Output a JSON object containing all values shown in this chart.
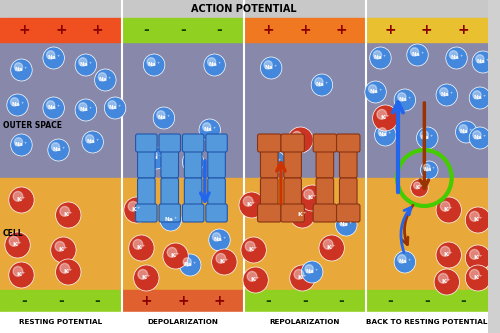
{
  "title": "ACTION POTENTIAL",
  "sections": [
    "RESTING POTENTIAL",
    "DEPOLARIZATION",
    "REPOLARIZATION",
    "BACK TO RESTING POTENTIAL"
  ],
  "fig_width": 5.0,
  "fig_height": 3.33,
  "bg_color": "#d0d0d0",
  "outer_space_color": "#8888aa",
  "cell_color": "#e8a83a",
  "top_bar_colors": [
    "#f05020",
    "#90d020",
    "#f07820",
    "#e8c030"
  ],
  "bottom_bar_colors": [
    "#90d020",
    "#e06030",
    "#90d020",
    "#90d020"
  ],
  "top_signs": [
    [
      "+",
      "+",
      "+"
    ],
    [
      "-",
      "-",
      "-"
    ],
    [
      "+",
      "+",
      "+"
    ],
    [
      "+",
      "+",
      "+"
    ]
  ],
  "bottom_signs": [
    [
      "-",
      "-",
      "-"
    ],
    [
      "+",
      "+",
      "+"
    ],
    [
      "-",
      "-",
      "-"
    ],
    [
      "-",
      "-",
      "-"
    ]
  ],
  "outer_space_label": "OUTER SPACE",
  "cell_label": "CELL",
  "na_color": "#4488dd",
  "k_color": "#cc3322",
  "arrow_blue": "#2266ee",
  "arrow_red": "#cc2200",
  "arrow_green": "#33bb00"
}
